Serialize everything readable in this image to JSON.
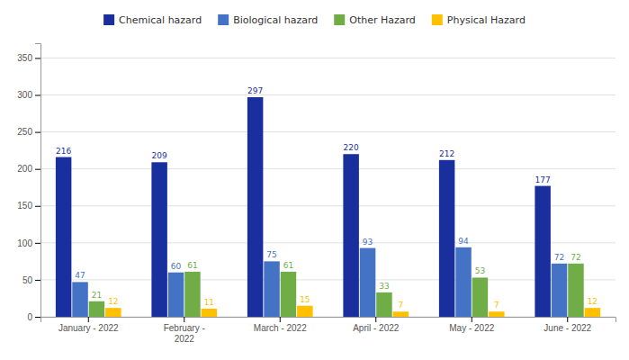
{
  "chart_data": {
    "type": "bar",
    "categories": [
      "January - 2022",
      "February -\n2022",
      "March - 2022",
      "April - 2022",
      "May - 2022",
      "June - 2022"
    ],
    "series": [
      {
        "name": "Chemical hazard",
        "color": "#1a2f9e",
        "values": [
          216,
          209,
          297,
          220,
          212,
          177
        ]
      },
      {
        "name": "Biological hazard",
        "color": "#4472c4",
        "values": [
          47,
          60,
          75,
          93,
          94,
          72
        ]
      },
      {
        "name": "Other Hazard",
        "color": "#70ad47",
        "values": [
          21,
          61,
          61,
          33,
          53,
          72
        ]
      },
      {
        "name": "Physical Hazard",
        "color": "#ffc000",
        "values": [
          12,
          11,
          15,
          7,
          7,
          12
        ]
      }
    ],
    "ylim": [
      0,
      370
    ],
    "yticks": [
      0,
      50,
      100,
      150,
      200,
      250,
      300,
      350
    ],
    "grid": true,
    "data_labels": true,
    "legend": "top"
  }
}
